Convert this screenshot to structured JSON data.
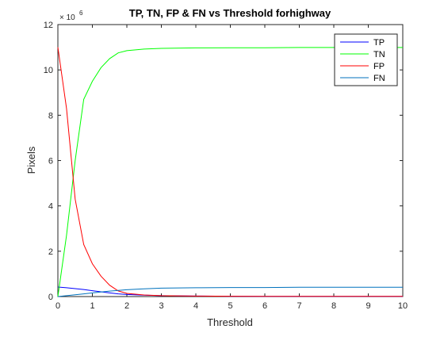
{
  "chart_data": {
    "type": "line",
    "title": "TP, TN, FP & FN vs Threshold forhighway",
    "xlabel": "Threshold",
    "ylabel": "Pixels",
    "y_multiplier": {
      "base": "× 10",
      "exponent": "6"
    },
    "xlim": [
      0,
      10
    ],
    "ylim": [
      0,
      12
    ],
    "xticks": [
      0,
      1,
      2,
      3,
      4,
      5,
      6,
      7,
      8,
      9,
      10
    ],
    "yticks": [
      0,
      2,
      4,
      6,
      8,
      10,
      12
    ],
    "grid": false,
    "legend_position": "top-right",
    "x": [
      0,
      0.25,
      0.5,
      0.75,
      1,
      1.25,
      1.5,
      1.75,
      2,
      2.5,
      3,
      4,
      5,
      6,
      7,
      8,
      9,
      10
    ],
    "series": [
      {
        "name": "TP",
        "color": "#0000ff",
        "values": [
          0.42,
          0.39,
          0.35,
          0.31,
          0.26,
          0.21,
          0.16,
          0.12,
          0.09,
          0.06,
          0.04,
          0.02,
          0.015,
          0.01,
          0.01,
          0.01,
          0.01,
          0.01
        ]
      },
      {
        "name": "TN",
        "color": "#00ff00",
        "values": [
          0.0,
          2.7,
          6.0,
          8.7,
          9.5,
          10.1,
          10.5,
          10.75,
          10.85,
          10.92,
          10.95,
          10.97,
          10.98,
          10.98,
          10.99,
          10.99,
          10.99,
          10.99
        ]
      },
      {
        "name": "FP",
        "color": "#ff0000",
        "values": [
          11.0,
          8.3,
          4.3,
          2.3,
          1.45,
          0.9,
          0.5,
          0.25,
          0.14,
          0.07,
          0.04,
          0.02,
          0.015,
          0.01,
          0.01,
          0.01,
          0.01,
          0.01
        ]
      },
      {
        "name": "FN",
        "color": "#0072bd",
        "values": [
          0.0,
          0.04,
          0.08,
          0.12,
          0.16,
          0.2,
          0.24,
          0.27,
          0.3,
          0.34,
          0.37,
          0.39,
          0.4,
          0.4,
          0.41,
          0.41,
          0.41,
          0.41
        ]
      }
    ]
  }
}
